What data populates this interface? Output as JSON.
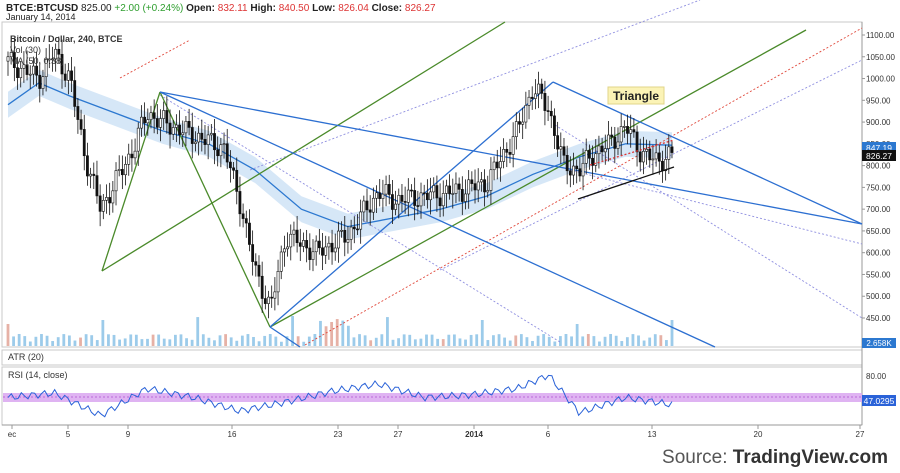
{
  "header": {
    "symbol": "BTCE:BTCUSD",
    "last": "825.00",
    "change": "+2.00 (+0.24%)",
    "open_label": "Open:",
    "open": "832.11",
    "high_label": "High:",
    "high": "840.50",
    "low_label": "Low:",
    "low": "826.04",
    "close_label": "Close:",
    "close": "826.27",
    "date": "January 14, 2014"
  },
  "pane_labels": {
    "main_title": "Bitcoin / Dollar, 240, BTCE",
    "vol": "Vol (30)",
    "ma": "MA (50, 0.38)",
    "atr": "ATR (20)",
    "rsi": "RSI (14, close)"
  },
  "annotation": {
    "triangle": "Triangle"
  },
  "source": {
    "prefix": "Source:",
    "brand": "TradingView.com"
  },
  "colors": {
    "candle": "#111111",
    "pitchfork_green": "#4a8a2a",
    "pitchfork_blue": "#2c6fd1",
    "dotted_red": "#e0473a",
    "dotted_blue": "#8f8fe0",
    "ma_line": "#2c78d0",
    "ma_band": "#cfe3f6",
    "rsi_line": "#2a62d8",
    "rsi_band": "#d9a6f0",
    "vol_bar": "#9ccbea",
    "vol_spike": "#e6b1a6"
  },
  "chart_data": {
    "type": "line",
    "title": "Bitcoin / Dollar, 240, BTCE",
    "x_ticks": [
      "ec",
      "5",
      "9",
      "16",
      "23",
      "27",
      "2014",
      "6",
      "13",
      "20",
      "27"
    ],
    "y_ticks": [
      "1100.00",
      "1050.00",
      "1000.00",
      "950.00",
      "900.00",
      "850.00",
      "800.00",
      "750.00",
      "700.00",
      "650.00",
      "600.00",
      "550.00",
      "500.00",
      "450.00"
    ],
    "ylim": [
      400,
      1115
    ],
    "price_labels": {
      "ma_value": "847.19",
      "close_value": "826.27",
      "vol_value": "2.658K"
    },
    "series": [
      {
        "name": "Bitcoin / Dollar",
        "x": [
          "Dec 2",
          "Dec 4",
          "Dec 5",
          "Dec 6",
          "Dec 7",
          "Dec 8",
          "Dec 10",
          "Dec 11",
          "Dec 12",
          "Dec 14",
          "Dec 16",
          "Dec 17",
          "Dec 18",
          "Dec 19",
          "Dec 20",
          "Dec 22",
          "Dec 24",
          "Dec 26",
          "Dec 27",
          "Dec 29",
          "Dec 31",
          "Jan 2",
          "Jan 4",
          "Jan 5",
          "Jan 6",
          "Jan 7",
          "Jan 8",
          "Jan 9",
          "Jan 10",
          "Jan 11",
          "Jan 12",
          "Jan 13",
          "Jan 14"
        ],
        "values": [
          1040,
          1000,
          1060,
          1000,
          820,
          700,
          830,
          920,
          900,
          870,
          840,
          720,
          560,
          470,
          640,
          600,
          640,
          740,
          720,
          730,
          740,
          760,
          880,
          980,
          930,
          800,
          790,
          830,
          850,
          890,
          830,
          810,
          826
        ]
      },
      {
        "name": "MA (50, 0.38)",
        "x": [
          "Dec 2",
          "Dec 4",
          "Dec 6",
          "Dec 9",
          "Dec 12",
          "Dec 15",
          "Dec 18",
          "Dec 21",
          "Dec 24",
          "Dec 27",
          "Dec 30",
          "Jan 2",
          "Jan 5",
          "Jan 8",
          "Jan 11",
          "Jan 14"
        ],
        "values": [
          940,
          990,
          960,
          920,
          880,
          850,
          790,
          700,
          660,
          680,
          700,
          730,
          780,
          820,
          850,
          847
        ]
      },
      {
        "name": "RSI (14, close)",
        "x": [
          "Dec 2",
          "Dec 5",
          "Dec 8",
          "Dec 11",
          "Dec 14",
          "Dec 17",
          "Dec 20",
          "Dec 23",
          "Dec 26",
          "Dec 29",
          "Jan 1",
          "Jan 4",
          "Jan 6",
          "Jan 8",
          "Jan 11",
          "Jan 14"
        ],
        "values": [
          55,
          60,
          35,
          65,
          55,
          40,
          50,
          62,
          70,
          55,
          58,
          65,
          80,
          38,
          55,
          47.03
        ]
      }
    ],
    "rsi_ticks": [
      "80.00",
      "47.0295"
    ]
  }
}
